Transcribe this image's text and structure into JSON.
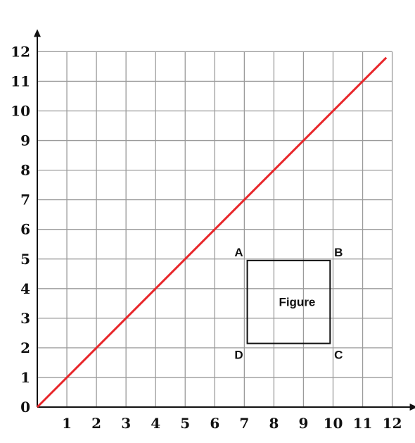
{
  "chart_data": {
    "type": "line",
    "grid": true,
    "xlim": [
      0,
      12
    ],
    "ylim": [
      0,
      12
    ],
    "x_ticks": [
      "0",
      "1",
      "2",
      "3",
      "4",
      "5",
      "6",
      "7",
      "8",
      "9",
      "10",
      "11",
      "12"
    ],
    "y_ticks": [
      "0",
      "1",
      "2",
      "3",
      "4",
      "5",
      "6",
      "7",
      "8",
      "9",
      "10",
      "11",
      "12"
    ],
    "series": [
      {
        "x": [
          0,
          11.8
        ],
        "y": [
          0,
          11.8
        ],
        "color": "#e8262a"
      }
    ],
    "figure": {
      "label": "Figure",
      "vertices": [
        {
          "name": "A",
          "x": 7.1,
          "y": 4.95
        },
        {
          "name": "B",
          "x": 9.9,
          "y": 4.95
        },
        {
          "name": "C",
          "x": 9.9,
          "y": 2.15
        },
        {
          "name": "D",
          "x": 7.1,
          "y": 2.15
        }
      ]
    }
  }
}
